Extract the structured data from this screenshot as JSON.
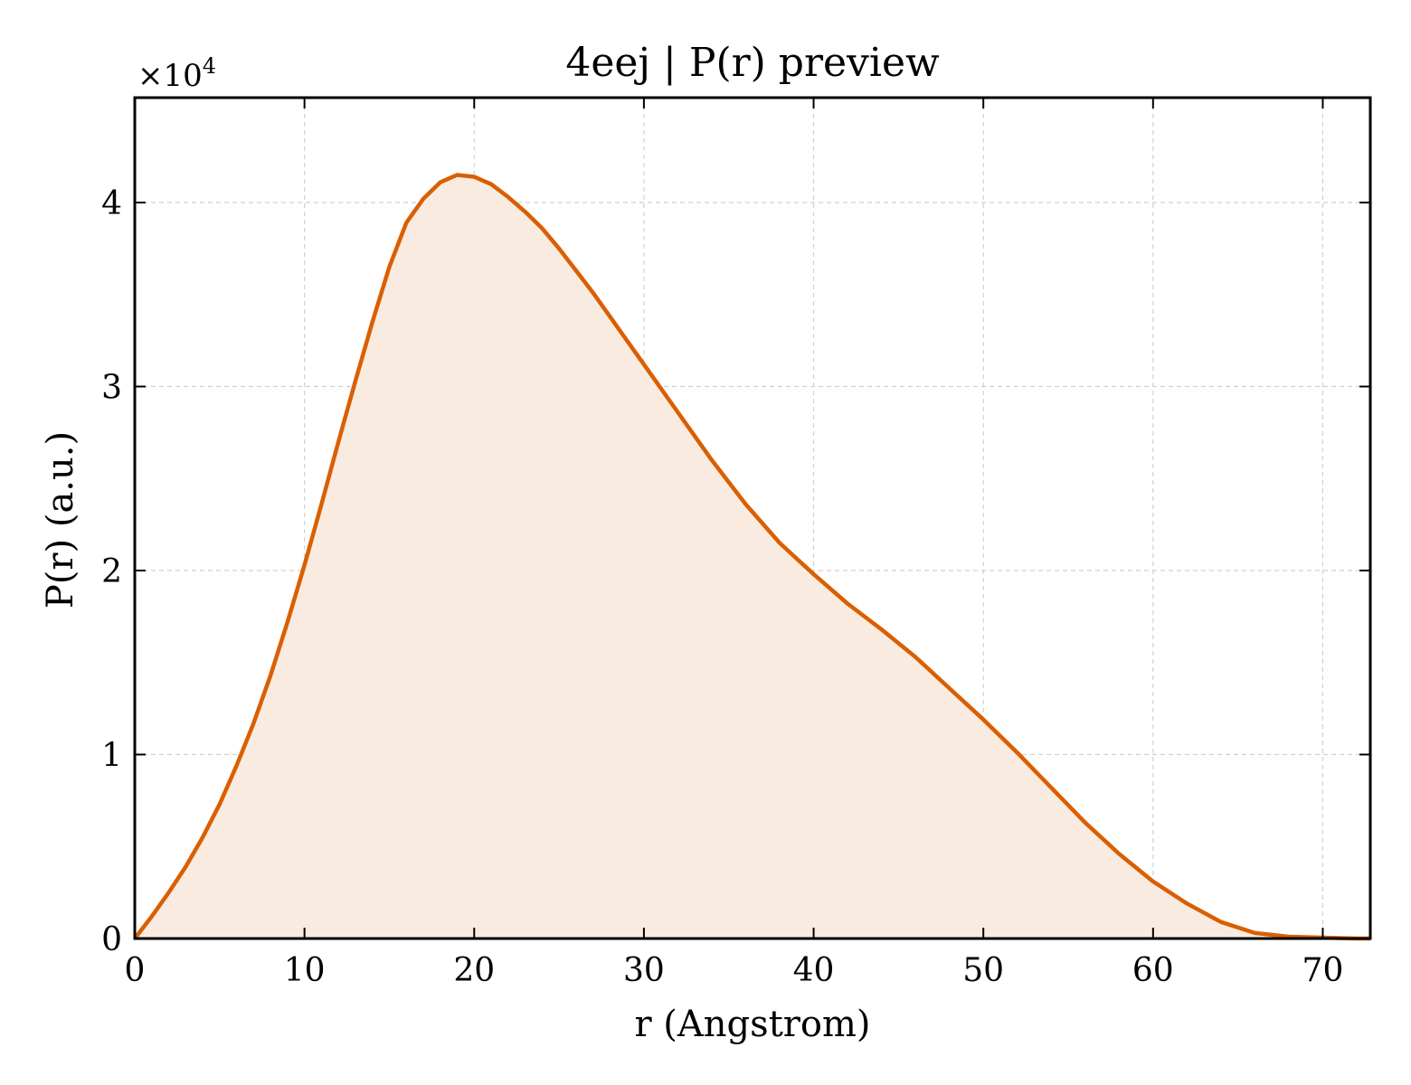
{
  "chart_data": {
    "type": "area",
    "title": "4eej | P(r) preview",
    "xlabel": "r (Angstrom)",
    "ylabel": "P(r) (a.u.)",
    "y_multiplier_label": "×10",
    "y_multiplier_exp": "4",
    "xlim": [
      0,
      72.8
    ],
    "ylim": [
      0,
      45700
    ],
    "xticks": [
      0,
      10,
      20,
      30,
      40,
      50,
      60,
      70
    ],
    "xtick_labels": [
      "0",
      "10",
      "20",
      "30",
      "40",
      "50",
      "60",
      "70"
    ],
    "yticks": [
      0,
      10000,
      20000,
      30000,
      40000
    ],
    "ytick_labels": [
      "0",
      "1",
      "2",
      "3",
      "4"
    ],
    "grid": true,
    "line_color": "#d95f02",
    "fill_color": "#f9ebe0",
    "series": [
      {
        "x": [
          0,
          1,
          2,
          3,
          4,
          5,
          6,
          7,
          8,
          9,
          10,
          11,
          12,
          13,
          14,
          15,
          16,
          17,
          18,
          19,
          20,
          21,
          22,
          23,
          24,
          25,
          26,
          27,
          28,
          29,
          30,
          32,
          34,
          36,
          38,
          40,
          42,
          44,
          46,
          48,
          50,
          52,
          54,
          56,
          58,
          60,
          62,
          64,
          66,
          68,
          70,
          72,
          72.8
        ],
        "y": [
          0,
          1200,
          2500,
          3900,
          5500,
          7300,
          9400,
          11700,
          14300,
          17200,
          20300,
          23600,
          27000,
          30300,
          33500,
          36500,
          38900,
          40200,
          41100,
          41500,
          41400,
          41000,
          40300,
          39500,
          38600,
          37500,
          36300,
          35100,
          33800,
          32500,
          31200,
          28600,
          26000,
          23600,
          21500,
          19800,
          18200,
          16800,
          15300,
          13600,
          11900,
          10100,
          8200,
          6300,
          4600,
          3100,
          1900,
          900,
          300,
          100,
          50,
          0,
          0
        ]
      }
    ]
  }
}
